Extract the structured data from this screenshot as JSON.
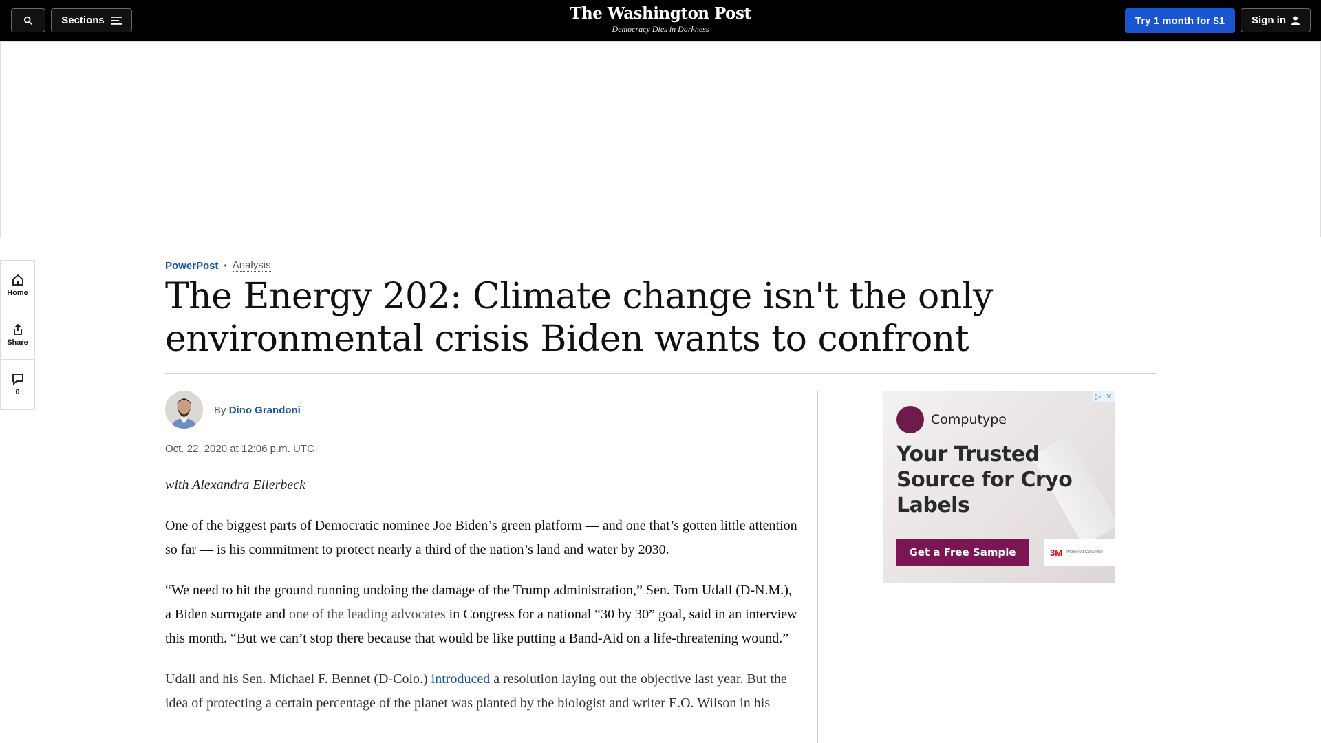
{
  "header": {
    "sections_label": "Sections",
    "logo_name": "The Washington Post",
    "logo_tagline": "Democracy Dies in Darkness",
    "trial_label": "Try 1 month for $1",
    "signin_label": "Sign in"
  },
  "rail": {
    "home_label": "Home",
    "share_label": "Share",
    "comments_count": "0"
  },
  "article": {
    "section": "PowerPost",
    "label": "Analysis",
    "headline": "The Energy 202: Climate change isn't the only environmental crisis Biden wants to confront",
    "byline_prefix": "By",
    "author": "Dino Grandoni",
    "date": "Oct. 22, 2020 at 12:06 p.m. UTC",
    "contributor": "with Alexandra Ellerbeck",
    "p1": "One of the biggest parts of Democratic nominee Joe Biden’s green platform — and one that’s gotten little attention so far — is his commitment to protect nearly a third of the nation’s land and water by 2030.",
    "p2_a": "“We need to hit the ground running undoing the damage of the Trump administration,” Sen. Tom Udall (D-N.M.), a Biden surrogate and ",
    "p2_link": "one of the leading advocates",
    "p2_b": " in Congress for a national “30 by 30” goal, said in an interview this month. “But we can’t stop there because that would be like putting a Band-Aid on a life-threatening wound.”",
    "p3_a": "Udall and his Sen. Michael F. Bennet (D-Colo.) ",
    "p3_link": "introduced",
    "p3_b": " a resolution laying out the objective last year. But the idea of protecting a certain percentage of the planet was planted by the biologist and writer E.O. Wilson in his"
  },
  "side_ad": {
    "brand": "Computype",
    "headline": "Your Trusted Source for Cryo Labels",
    "cta": "Get a Free Sample",
    "badge_brand": "3M",
    "badge_text": "Preferred Converter"
  },
  "colors": {
    "topbar": "#000000",
    "accent_blue": "#1955a5",
    "trial_button": "#1955ce",
    "ad_cta": "#7a1653"
  }
}
